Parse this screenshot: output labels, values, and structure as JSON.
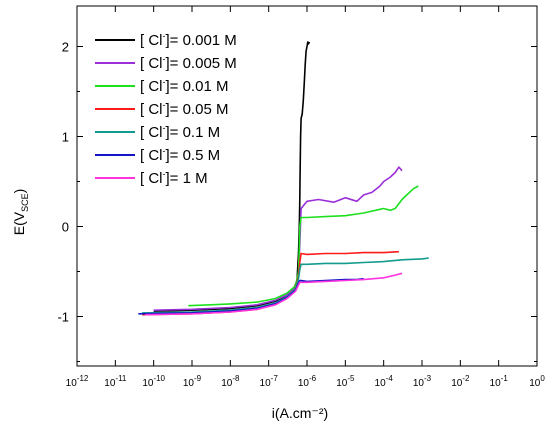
{
  "chart_data": {
    "type": "line",
    "xlabel": "i(A.cm⁻²)",
    "ylabel": "E(V_SCE)",
    "ylabel_main": "E(V",
    "ylabel_sub": "SCE",
    "ylabel_close": ")",
    "xscale": "log",
    "xlim": [
      1e-12,
      1
    ],
    "ylim": [
      -1.55,
      2.45
    ],
    "grid": false,
    "legend_position": "top-left",
    "x_ticks": [
      {
        "base": "10",
        "exp": "-12",
        "value": 1e-12
      },
      {
        "base": "10",
        "exp": "-11",
        "value": 1e-11
      },
      {
        "base": "10",
        "exp": "-10",
        "value": 1e-10
      },
      {
        "base": "10",
        "exp": "-9",
        "value": 1e-09
      },
      {
        "base": "10",
        "exp": "-8",
        "value": 1e-08
      },
      {
        "base": "10",
        "exp": "-7",
        "value": 1e-07
      },
      {
        "base": "10",
        "exp": "-6",
        "value": 1e-06
      },
      {
        "base": "10",
        "exp": "-5",
        "value": 1e-05
      },
      {
        "base": "10",
        "exp": "-4",
        "value": 0.0001
      },
      {
        "base": "10",
        "exp": "-3",
        "value": 0.001
      },
      {
        "base": "10",
        "exp": "-2",
        "value": 0.01
      },
      {
        "base": "10",
        "exp": "-1",
        "value": 0.1
      },
      {
        "base": "10",
        "exp": "0",
        "value": 1
      }
    ],
    "y_ticks": [
      {
        "label": "2",
        "value": 2
      },
      {
        "label": "1",
        "value": 1
      },
      {
        "label": "0",
        "value": 0
      },
      {
        "label": "-1",
        "value": -1
      }
    ],
    "series": [
      {
        "name": "[ Cl⁻]= 0.001 M",
        "label_prefix": "[ Cl",
        "label_sup": "-",
        "label_suffix": "]= 0.001 M",
        "color": "#000000",
        "x": [
          1e-10,
          1e-09,
          1e-08,
          5e-08,
          1.5e-07,
          3e-07,
          4.5e-07,
          5.5e-07,
          6e-07,
          6.3e-07,
          6.5e-07,
          6.6e-07,
          6.8e-07,
          7e-07,
          7.5e-07,
          8e-07,
          8.5e-07,
          9e-07,
          9.5e-07,
          1e-06,
          1.05e-06,
          1.1e-06,
          1.15e-06
        ],
        "y": [
          -0.94,
          -0.93,
          -0.91,
          -0.88,
          -0.83,
          -0.77,
          -0.7,
          -0.6,
          -0.3,
          0.0,
          0.3,
          0.6,
          1.0,
          1.2,
          1.25,
          1.4,
          1.6,
          1.8,
          1.95,
          2.0,
          2.05,
          2.03,
          2.05
        ]
      },
      {
        "name": "[ Cl⁻]= 0.005 M",
        "label_prefix": "[ Cl",
        "label_sup": "-",
        "label_suffix": "]= 0.005 M",
        "color": "#9b30d9",
        "x": [
          1e-10,
          1e-09,
          1e-08,
          5e-08,
          1.5e-07,
          3e-07,
          5e-07,
          6e-07,
          6.5e-07,
          7e-07,
          1e-06,
          2e-06,
          5e-06,
          1e-05,
          2e-05,
          3e-05,
          5e-05,
          8e-05,
          0.0001,
          0.00015,
          0.0002,
          0.00025,
          0.0003
        ],
        "y": [
          -0.93,
          -0.92,
          -0.9,
          -0.87,
          -0.82,
          -0.76,
          -0.68,
          -0.55,
          -0.2,
          0.2,
          0.28,
          0.3,
          0.27,
          0.32,
          0.28,
          0.35,
          0.38,
          0.45,
          0.5,
          0.55,
          0.6,
          0.66,
          0.62
        ]
      },
      {
        "name": "[ Cl⁻]= 0.01 M",
        "label_prefix": "[ Cl",
        "label_sup": "-",
        "label_suffix": "]= 0.01 M",
        "color": "#1ee01e",
        "x": [
          8e-10,
          3e-09,
          1e-08,
          5e-08,
          1.5e-07,
          3e-07,
          5e-07,
          6e-07,
          6.3e-07,
          6.5e-07,
          7e-07,
          1e-06,
          3e-06,
          1e-05,
          3e-05,
          0.0001,
          0.00015,
          0.0002,
          0.0003,
          0.0004,
          0.0006,
          0.0008
        ],
        "y": [
          -0.88,
          -0.87,
          -0.86,
          -0.84,
          -0.8,
          -0.74,
          -0.66,
          -0.5,
          -0.25,
          0.0,
          0.1,
          0.1,
          0.11,
          0.12,
          0.15,
          0.2,
          0.18,
          0.2,
          0.3,
          0.35,
          0.42,
          0.45
        ]
      },
      {
        "name": "[ Cl⁻]= 0.05 M",
        "label_prefix": "[ Cl",
        "label_sup": "-",
        "label_suffix": "]= 0.05 M",
        "color": "#ff1a1a",
        "x": [
          5e-11,
          1e-09,
          1e-08,
          5e-08,
          1.5e-07,
          3e-07,
          5e-07,
          6e-07,
          6.5e-07,
          7e-07,
          1e-06,
          3e-06,
          1e-05,
          3e-05,
          0.0001,
          0.00025
        ],
        "y": [
          -0.98,
          -0.97,
          -0.95,
          -0.92,
          -0.86,
          -0.79,
          -0.7,
          -0.55,
          -0.4,
          -0.3,
          -0.31,
          -0.3,
          -0.3,
          -0.29,
          -0.29,
          -0.28
        ]
      },
      {
        "name": "[ Cl⁻]= 0.1 M",
        "label_prefix": "[ Cl",
        "label_sup": "-",
        "label_suffix": "]= 0.1 M",
        "color": "#129b8e",
        "x": [
          5e-11,
          1e-09,
          1e-08,
          5e-08,
          1.5e-07,
          3e-07,
          5e-07,
          6e-07,
          6.5e-07,
          7e-07,
          1e-06,
          3e-06,
          1e-05,
          3e-05,
          0.0001,
          0.0003,
          0.001,
          0.0015
        ],
        "y": [
          -0.96,
          -0.95,
          -0.93,
          -0.9,
          -0.85,
          -0.78,
          -0.7,
          -0.58,
          -0.48,
          -0.42,
          -0.42,
          -0.41,
          -0.41,
          -0.4,
          -0.39,
          -0.37,
          -0.36,
          -0.35
        ]
      },
      {
        "name": "[ Cl⁻]= 0.5 M",
        "label_prefix": "[ Cl",
        "label_sup": "-",
        "label_suffix": "]= 0.5 M",
        "color": "#1414c8",
        "x": [
          4e-11,
          1e-09,
          1e-08,
          5e-08,
          1.5e-07,
          3e-07,
          5e-07,
          6e-07,
          6.5e-07,
          7e-07,
          1e-06,
          3e-06,
          1e-05,
          2e-05,
          3e-05
        ],
        "y": [
          -0.97,
          -0.96,
          -0.94,
          -0.91,
          -0.86,
          -0.79,
          -0.71,
          -0.63,
          -0.6,
          -0.6,
          -0.61,
          -0.6,
          -0.59,
          -0.59,
          -0.58
        ]
      },
      {
        "name": "[ Cl⁻]= 1 M",
        "label_prefix": "[ Cl",
        "label_sup": "-",
        "label_suffix": "]= 1 M",
        "color": "#ff33e0",
        "x": [
          6e-11,
          1e-09,
          1e-08,
          5e-08,
          1.5e-07,
          3e-07,
          5e-07,
          6e-07,
          6.5e-07,
          7e-07,
          1e-06,
          3e-06,
          1e-05,
          3e-05,
          0.0001,
          0.0002,
          0.0003
        ],
        "y": [
          -0.98,
          -0.97,
          -0.95,
          -0.92,
          -0.87,
          -0.8,
          -0.72,
          -0.65,
          -0.62,
          -0.62,
          -0.62,
          -0.61,
          -0.6,
          -0.59,
          -0.57,
          -0.54,
          -0.52
        ]
      }
    ]
  }
}
